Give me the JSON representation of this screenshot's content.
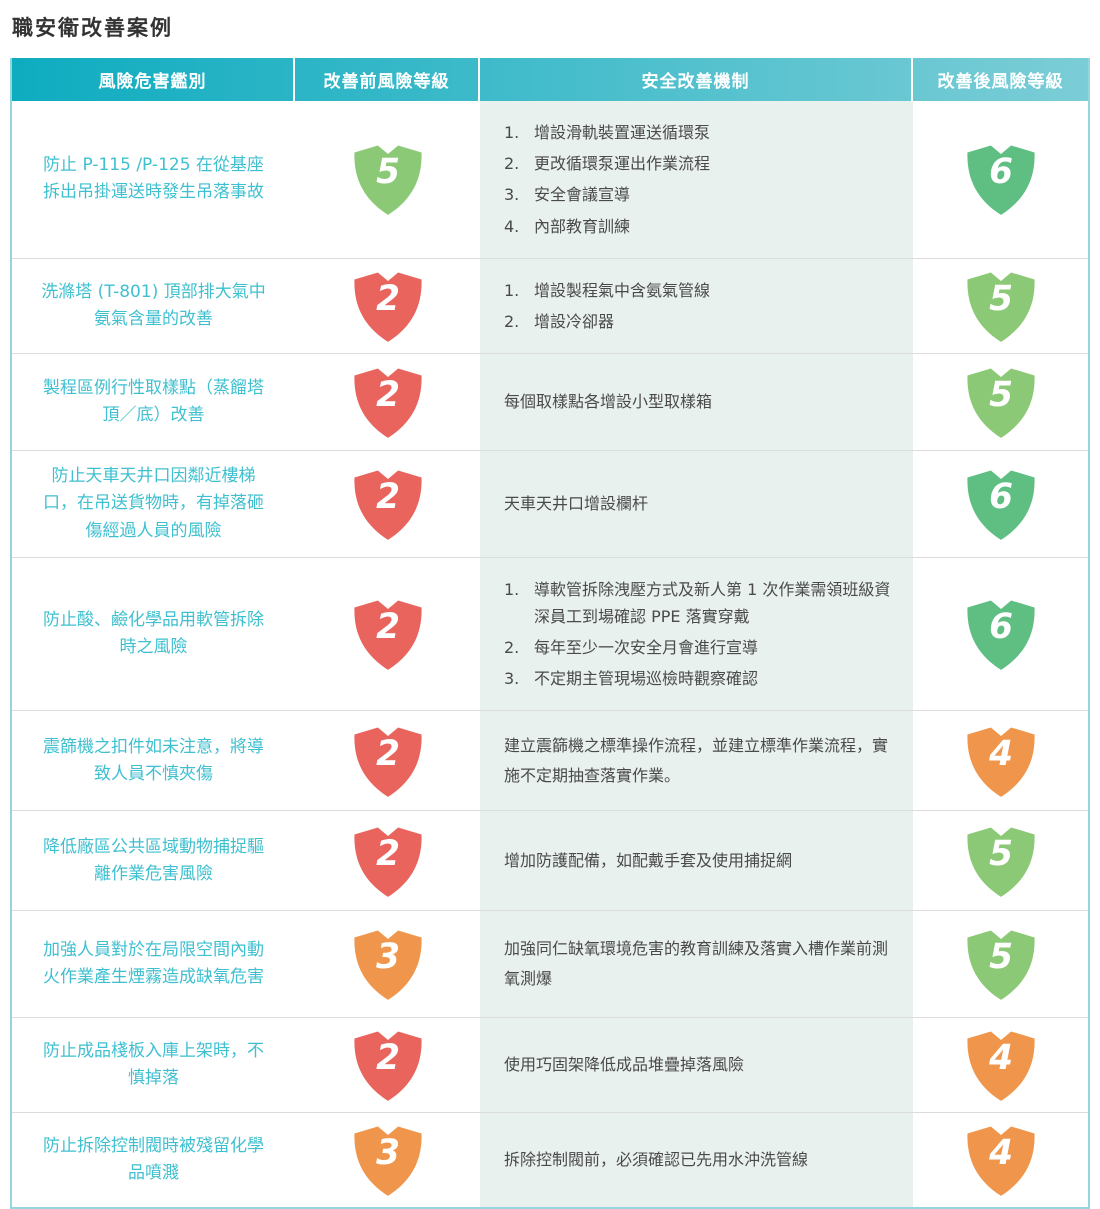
{
  "title": "職安衛改善案例",
  "colors": {
    "header_gradient_start": "#0EACC0",
    "header_gradient_end": "#7BCDD6",
    "hazard_text": "#3FC0D0",
    "mechanism_bg": "#E9F1EE",
    "level_red": "#E8645D",
    "level_orange": "#F0964C",
    "level_light_green": "#8CC976",
    "level_green": "#5FBE82"
  },
  "table": {
    "headers": [
      "風險危害鑑別",
      "改善前風險等級",
      "安全改善機制",
      "改善後風險等級"
    ],
    "rows": [
      {
        "hazard": "防止 P-115 /P-125 在從基座拆出吊掛運送時發生吊落事故",
        "before": {
          "value": "5",
          "color": "#8CC976"
        },
        "mechanism": {
          "items": [
            {
              "num": "1.",
              "text": "增設滑軌裝置運送循環泵"
            },
            {
              "num": "2.",
              "text": "更改循環泵運出作業流程"
            },
            {
              "num": "3.",
              "text": "安全會議宣導"
            },
            {
              "num": "4.",
              "text": "內部教育訓練"
            }
          ]
        },
        "after": {
          "value": "6",
          "color": "#5FBE82"
        }
      },
      {
        "hazard": "洗滌塔 (T-801) 頂部排大氣中氨氣含量的改善",
        "before": {
          "value": "2",
          "color": "#E8645D"
        },
        "mechanism": {
          "items": [
            {
              "num": "1.",
              "text": "增設製程氣中含氨氣管線"
            },
            {
              "num": "2.",
              "text": "增設冷卻器"
            }
          ]
        },
        "after": {
          "value": "5",
          "color": "#8CC976"
        }
      },
      {
        "hazard": "製程區例行性取樣點（蒸餾塔頂／底）改善",
        "before": {
          "value": "2",
          "color": "#E8645D"
        },
        "mechanism": {
          "text": "每個取樣點各增設小型取樣箱"
        },
        "after": {
          "value": "5",
          "color": "#8CC976"
        }
      },
      {
        "hazard": "防止天車天井口因鄰近樓梯口，在吊送貨物時，有掉落砸傷經過人員的風險",
        "before": {
          "value": "2",
          "color": "#E8645D"
        },
        "mechanism": {
          "text": "天車天井口增設欄杆"
        },
        "after": {
          "value": "6",
          "color": "#5FBE82"
        }
      },
      {
        "hazard": "防止酸、鹼化學品用軟管拆除時之風險",
        "before": {
          "value": "2",
          "color": "#E8645D"
        },
        "mechanism": {
          "items": [
            {
              "num": "1.",
              "text": "導軟管拆除洩壓方式及新人第 1 次作業需領班級資深員工到場確認 PPE 落實穿戴"
            },
            {
              "num": "2.",
              "text": "每年至少一次安全月會進行宣導"
            },
            {
              "num": "3.",
              "text": "不定期主管現場巡檢時觀察確認"
            }
          ]
        },
        "after": {
          "value": "6",
          "color": "#5FBE82"
        }
      },
      {
        "hazard": "震篩機之扣件如未注意，將導致人員不慎夾傷",
        "before": {
          "value": "2",
          "color": "#E8645D"
        },
        "mechanism": {
          "text": "建立震篩機之標準操作流程，並建立標準作業流程，實施不定期抽查落實作業。"
        },
        "after": {
          "value": "4",
          "color": "#F0964C"
        }
      },
      {
        "hazard": "降低廠區公共區域動物捕捉驅離作業危害風險",
        "before": {
          "value": "2",
          "color": "#E8645D"
        },
        "mechanism": {
          "text": "增加防護配備，如配戴手套及使用捕捉網"
        },
        "after": {
          "value": "5",
          "color": "#8CC976"
        }
      },
      {
        "hazard": "加強人員對於在局限空間內動火作業產生煙霧造成缺氧危害",
        "before": {
          "value": "3",
          "color": "#F0964C"
        },
        "mechanism": {
          "text": "加強同仁缺氧環境危害的教育訓練及落實入槽作業前測氧測爆"
        },
        "after": {
          "value": "5",
          "color": "#8CC976"
        }
      },
      {
        "hazard": "防止成品棧板入庫上架時，不慎掉落",
        "before": {
          "value": "2",
          "color": "#E8645D"
        },
        "mechanism": {
          "text": "使用巧固架降低成品堆疊掉落風險"
        },
        "after": {
          "value": "4",
          "color": "#F0964C"
        }
      },
      {
        "hazard": "防止拆除控制閥時被殘留化學品噴濺",
        "before": {
          "value": "3",
          "color": "#F0964C"
        },
        "mechanism": {
          "text": "拆除控制閥前，必須確認已先用水沖洗管線"
        },
        "after": {
          "value": "4",
          "color": "#F0964C"
        }
      }
    ]
  }
}
